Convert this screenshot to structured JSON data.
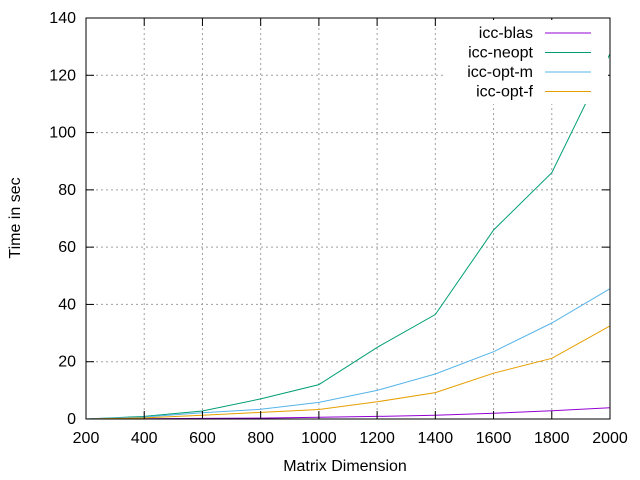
{
  "chart_data": {
    "type": "line",
    "title": "",
    "xlabel": "Matrix Dimension",
    "ylabel": "Time in sec",
    "xlim": [
      200,
      2000
    ],
    "ylim": [
      0,
      140
    ],
    "xticks": [
      200,
      400,
      600,
      800,
      1000,
      1200,
      1400,
      1600,
      1800,
      2000
    ],
    "yticks": [
      0,
      20,
      40,
      60,
      80,
      100,
      120,
      140
    ],
    "grid": true,
    "legend_position": "top-right",
    "x": [
      200,
      400,
      600,
      800,
      1000,
      1200,
      1400,
      1600,
      1800,
      2000
    ],
    "series": [
      {
        "name": "icc-blas",
        "color": "#9400d3",
        "values": [
          0.0,
          0.1,
          0.2,
          0.3,
          0.6,
          0.9,
          1.3,
          2.0,
          2.9,
          3.9
        ]
      },
      {
        "name": "icc-neopt",
        "color": "#009e73",
        "values": [
          0.0,
          0.9,
          2.8,
          7.0,
          12.0,
          25.0,
          36.5,
          66.0,
          86.0,
          127.5
        ]
      },
      {
        "name": "icc-opt-m",
        "color": "#56b4e9",
        "values": [
          0.0,
          0.7,
          2.2,
          3.4,
          5.8,
          10.0,
          15.7,
          23.5,
          33.5,
          45.5
        ]
      },
      {
        "name": "icc-opt-f",
        "color": "#e69f00",
        "values": [
          0.0,
          0.4,
          1.3,
          2.3,
          3.3,
          6.0,
          9.2,
          16.0,
          21.2,
          32.5
        ]
      }
    ]
  }
}
